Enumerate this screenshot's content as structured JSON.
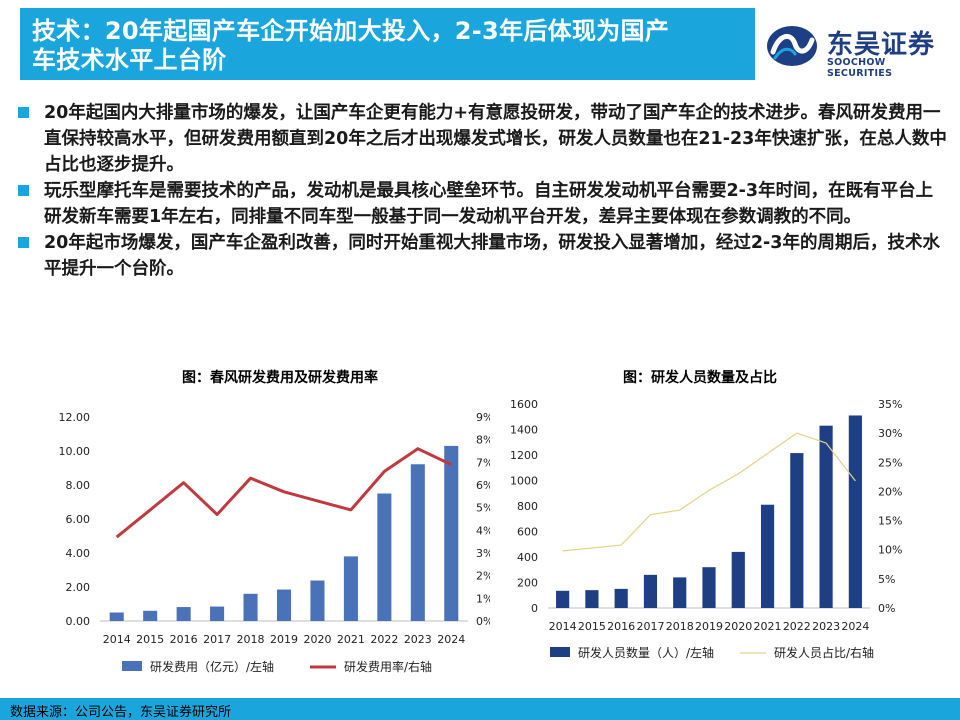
{
  "header": {
    "title_line1": "技术：20年起国产车企开始加大投入，2-3年后体现为国产",
    "title_line2": "车技术水平上台阶",
    "logo_cn": "东吴证券",
    "logo_en": "SOOCHOW SECURITIES"
  },
  "bullets": [
    "20年起国内大排量市场的爆发，让国产车企更有能力+有意愿投研发，带动了国产车企的技术进步。春风研发费用一直保持较高水平，但研发费用额直到20年之后才出现爆发式增长，研发人员数量也在21-23年快速扩张，在总人数中占比也逐步提升。",
    "玩乐型摩托车是需要技术的产品，发动机是最具核心壁垒环节。自主研发发动机平台需要2-3年时间，在既有平台上研发新车需要1年左右，同排量不同车型一般基于同一发动机平台开发，差异主要体现在参数调教的不同。",
    "20年起市场爆发，国产车企盈利改善，同时开始重视大排量市场，研发投入显著增加，经过2-3年的周期后，技术水平提升一个台阶。"
  ],
  "footer": {
    "source": "数据来源：公司公告，东吴证券研究所"
  },
  "colors": {
    "accent": "#1aa6dd",
    "bar1": "#4a72b8",
    "line1": "#c0393f",
    "bar2": "#1f3f84",
    "line2": "#e6d28a"
  },
  "chart_data": [
    {
      "type": "bar",
      "title": "图：春风研发费用及研发费用率",
      "categories": [
        "2014",
        "2015",
        "2016",
        "2017",
        "2018",
        "2019",
        "2020",
        "2021",
        "2022",
        "2023",
        "2024"
      ],
      "series": [
        {
          "name": "研发费用（亿元）/左轴",
          "type": "bar",
          "axis": "left",
          "values": [
            0.5,
            0.6,
            0.82,
            0.85,
            1.6,
            1.85,
            2.38,
            3.8,
            7.5,
            9.22,
            10.3
          ]
        },
        {
          "name": "研发费用率/右轴",
          "type": "line",
          "axis": "right",
          "values": [
            3.7,
            4.9,
            6.1,
            4.7,
            6.3,
            5.7,
            5.3,
            4.9,
            6.6,
            7.6,
            6.9
          ]
        }
      ],
      "y_left": {
        "min": 0,
        "max": 12,
        "step": 2,
        "ticks": [
          "0.00",
          "2.00",
          "4.00",
          "6.00",
          "8.00",
          "10.00",
          "12.00"
        ]
      },
      "y_right": {
        "min": 0,
        "max": 9,
        "step": 1,
        "ticks": [
          "0%",
          "1%",
          "2%",
          "3%",
          "4%",
          "5%",
          "6%",
          "7%",
          "8%",
          "9%"
        ]
      },
      "legend": "bottom",
      "grid": false
    },
    {
      "type": "bar",
      "title": "图：研发人员数量及占比",
      "categories": [
        "2014",
        "2015",
        "2016",
        "2017",
        "2018",
        "2019",
        "2020",
        "2021",
        "2022",
        "2023",
        "2024"
      ],
      "series": [
        {
          "name": "研发人员数量（人）/左轴",
          "type": "bar",
          "axis": "left",
          "values": [
            135,
            140,
            150,
            260,
            240,
            320,
            440,
            810,
            1215,
            1430,
            1510
          ]
        },
        {
          "name": "研发人员占比/右轴",
          "type": "line",
          "axis": "right",
          "values": [
            9.8,
            10.3,
            10.8,
            16.0,
            16.8,
            20.2,
            23.0,
            26.5,
            30.0,
            28.3,
            21.8
          ]
        }
      ],
      "y_left": {
        "min": 0,
        "max": 1600,
        "step": 200,
        "ticks": [
          "0",
          "200",
          "400",
          "600",
          "800",
          "1000",
          "1200",
          "1400",
          "1600"
        ]
      },
      "y_right": {
        "min": 0,
        "max": 35,
        "step": 5,
        "ticks": [
          "0%",
          "5%",
          "10%",
          "15%",
          "20%",
          "25%",
          "30%",
          "35%"
        ]
      },
      "legend": "bottom",
      "grid": false
    }
  ]
}
